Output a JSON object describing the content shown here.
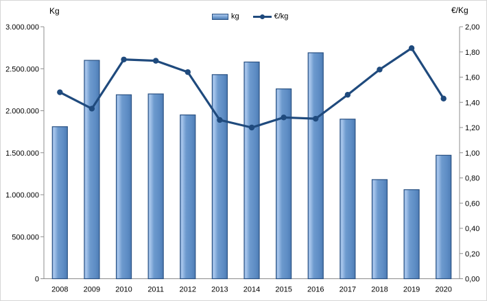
{
  "chart_data": {
    "type": "combo",
    "subtype": [
      "bar",
      "line"
    ],
    "categories": [
      "2008",
      "2009",
      "2010",
      "2011",
      "2012",
      "2013",
      "2014",
      "2015",
      "2016",
      "2017",
      "2018",
      "2019",
      "2020"
    ],
    "series": [
      {
        "name": "kg",
        "type": "bar",
        "axis": "left",
        "values": [
          1810000,
          2600000,
          2190000,
          2200000,
          1950000,
          2430000,
          2580000,
          2260000,
          2690000,
          1900000,
          1180000,
          1060000,
          1470000
        ]
      },
      {
        "name": "€/kg",
        "type": "line",
        "axis": "right",
        "values": [
          1.48,
          1.35,
          1.74,
          1.73,
          1.64,
          1.26,
          1.2,
          1.28,
          1.27,
          1.46,
          1.66,
          1.83,
          1.43
        ]
      }
    ],
    "left_axis": {
      "title": "Kg",
      "min": 0,
      "max": 3000000,
      "step": 500000,
      "tick_labels": [
        "3.000.000",
        "2.500.000",
        "2.000.000",
        "1.500.000",
        "1.000.000",
        "500.000",
        "0"
      ]
    },
    "right_axis": {
      "title": "€/Kg",
      "min": 0,
      "max": 2,
      "step": 0.2,
      "tick_labels": [
        "2,00",
        "1,80",
        "1,60",
        "1,40",
        "1,20",
        "1,00",
        "0,80",
        "0,60",
        "0,40",
        "0,20",
        "0,00"
      ]
    },
    "legend": {
      "position": "top",
      "items": [
        "kg",
        "€/kg"
      ]
    },
    "grid": false
  },
  "colors": {
    "bar_main": "#6d9ace",
    "bar_highlight": "#a8c6ec",
    "bar_light_edge": "#8ab0de",
    "bar_dark": "#4d7cb4",
    "bar_border": "#2b5283",
    "line": "#1f4a7d",
    "axis": "#8c8c8c",
    "text": "#000000"
  }
}
